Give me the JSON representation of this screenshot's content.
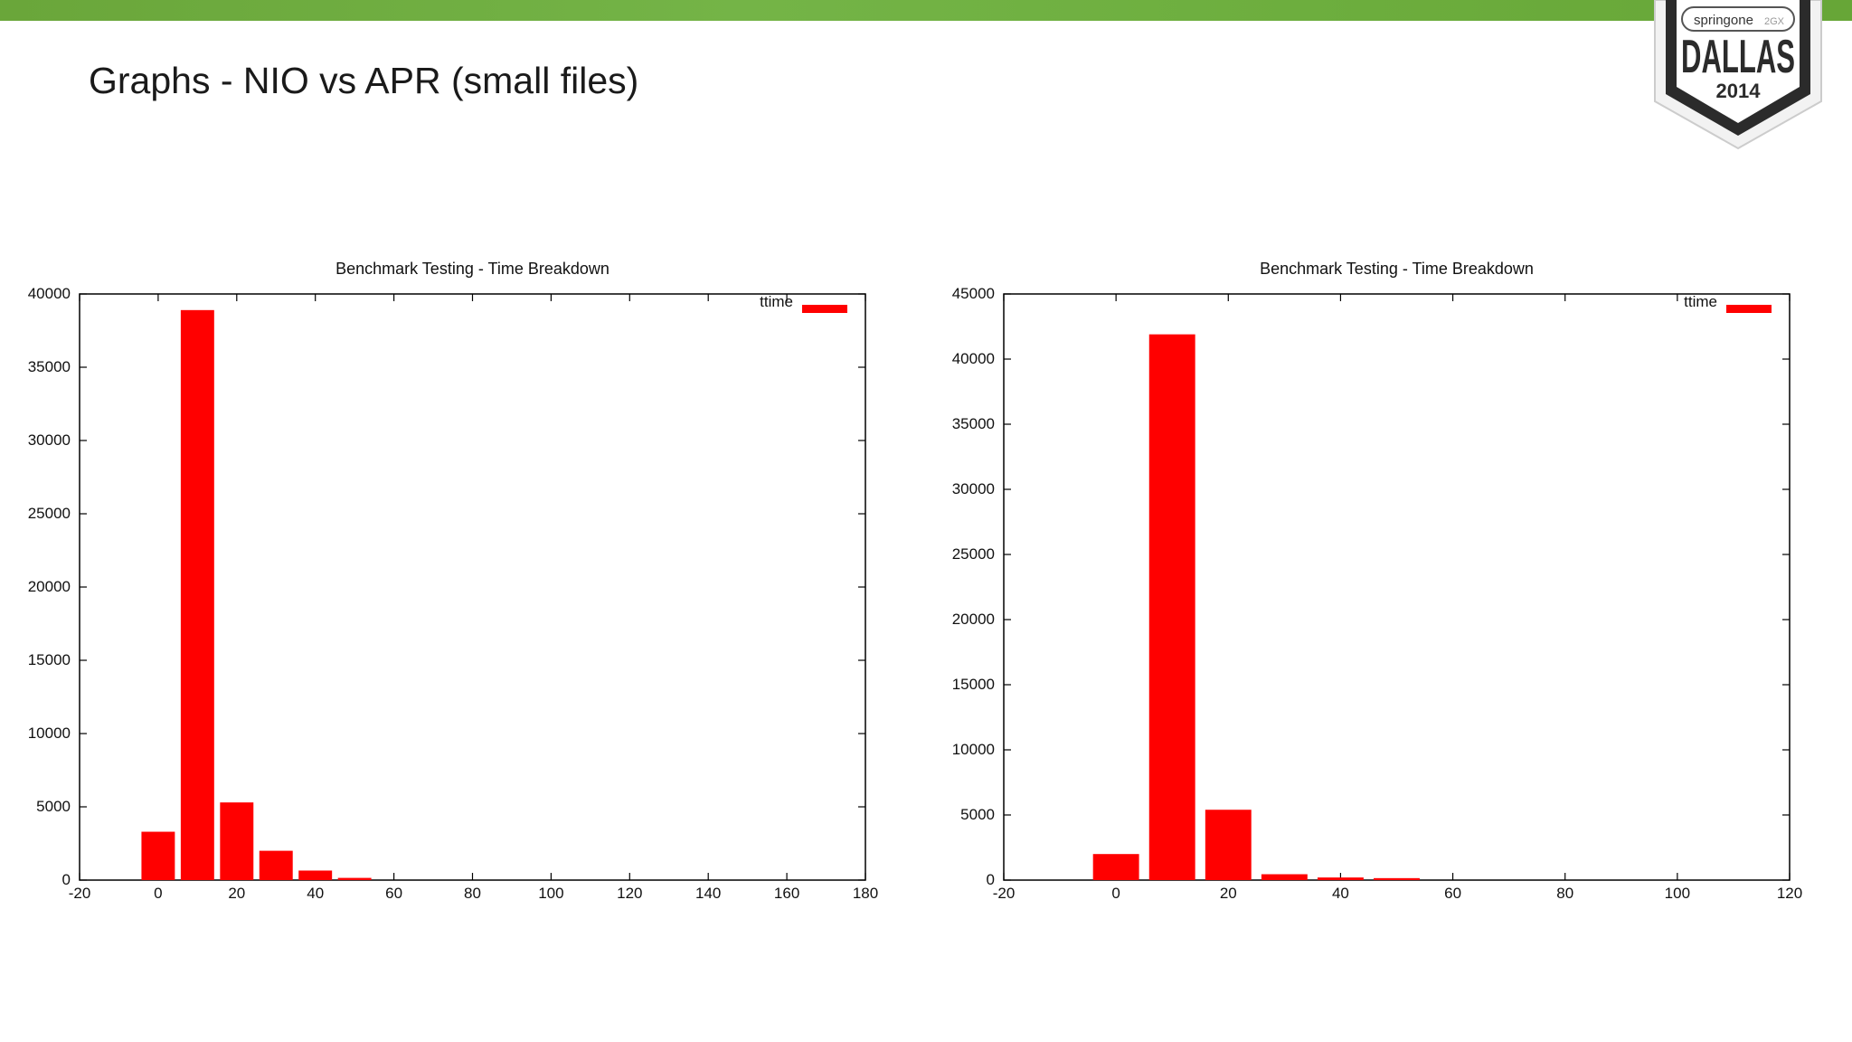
{
  "slide": {
    "title": "Graphs - NIO vs APR (small files)",
    "brand_color": "#6db240"
  },
  "badge": {
    "brand": "springone",
    "brand_suffix": "2GX",
    "city": "DALLAS",
    "year": "2014"
  },
  "chart_data": [
    {
      "type": "bar",
      "title": "Benchmark Testing - Time Breakdown",
      "xlabel": "",
      "ylabel": "",
      "xlim": [
        -20,
        180
      ],
      "ylim": [
        0,
        40000
      ],
      "xticks": [
        -20,
        0,
        20,
        40,
        60,
        80,
        100,
        120,
        140,
        160,
        180
      ],
      "yticks": [
        0,
        5000,
        10000,
        15000,
        20000,
        25000,
        30000,
        35000,
        40000
      ],
      "bar_width": 8.5,
      "color": "#ff0000",
      "legend": "top-right",
      "series": [
        {
          "name": "ttime",
          "x": [
            0,
            10,
            20,
            30,
            40,
            50
          ],
          "values": [
            3300,
            38900,
            5300,
            2000,
            650,
            150
          ]
        }
      ]
    },
    {
      "type": "bar",
      "title": "Benchmark Testing - Time Breakdown",
      "xlabel": "",
      "ylabel": "",
      "xlim": [
        -20,
        120
      ],
      "ylim": [
        0,
        45000
      ],
      "xticks": [
        -20,
        0,
        20,
        40,
        60,
        80,
        100,
        120
      ],
      "yticks": [
        0,
        5000,
        10000,
        15000,
        20000,
        25000,
        30000,
        35000,
        40000,
        45000
      ],
      "bar_width": 8.2,
      "color": "#ff0000",
      "legend": "top-right",
      "series": [
        {
          "name": "ttime",
          "x": [
            0,
            10,
            20,
            30,
            40,
            50
          ],
          "values": [
            2000,
            41900,
            5400,
            450,
            200,
            150
          ]
        }
      ]
    }
  ]
}
